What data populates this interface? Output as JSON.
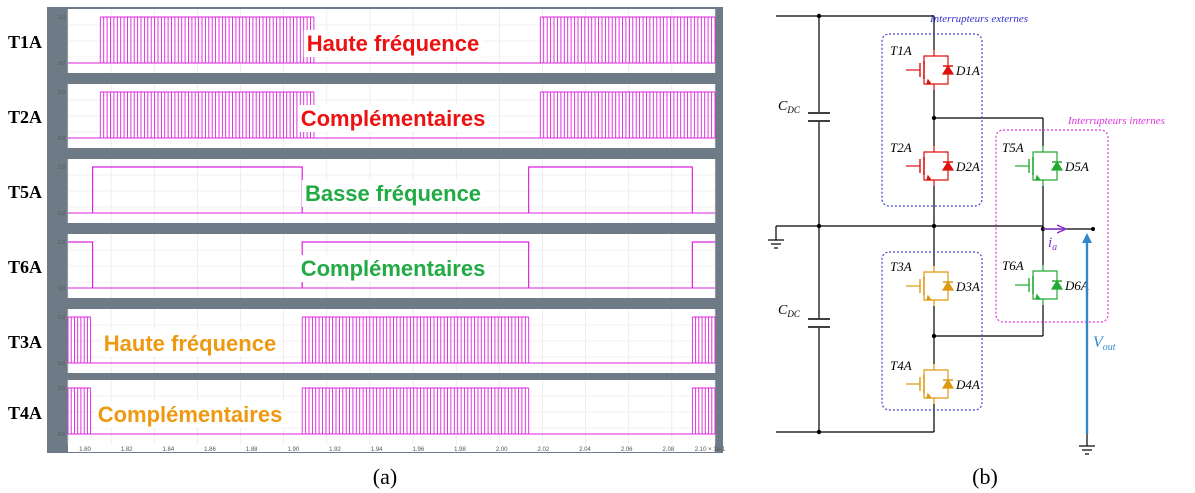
{
  "panel_a": {
    "caption": "(a)",
    "x_ticks": [
      "1.80",
      "1.82",
      "1.84",
      "1.86",
      "1.88",
      "1.90",
      "1.92",
      "1.94",
      "1.96",
      "1.98",
      "2.00",
      "2.02",
      "2.04",
      "2.06",
      "2.08",
      "2.10 × 1e-1"
    ],
    "y_labels": {
      "top": "1.0",
      "bottom": "0.0"
    },
    "trace_color": "#dd22dd",
    "rows": [
      {
        "label": "T1A",
        "annotation": "Haute fréquence",
        "annotation_color": "#ee1111",
        "pattern": "hf",
        "hf_intervals": [
          [
            0.05,
            0.38
          ],
          [
            0.73,
            1.0
          ]
        ],
        "low_intervals": []
      },
      {
        "label": "T2A",
        "annotation": "Complémentaires",
        "annotation_color": "#ee1111",
        "pattern": "hf",
        "hf_intervals": [
          [
            0.05,
            0.38
          ],
          [
            0.73,
            1.0
          ]
        ],
        "low_intervals": []
      },
      {
        "label": "T5A",
        "annotation": "Basse fréquence",
        "annotation_color": "#22aa44",
        "pattern": "lf",
        "hf_intervals": [],
        "low_intervals": [
          [
            0.0,
            0.038
          ],
          [
            0.362,
            0.712
          ],
          [
            0.965,
            1.0
          ]
        ]
      },
      {
        "label": "T6A",
        "annotation": "Complémentaires",
        "annotation_color": "#22aa44",
        "pattern": "lf",
        "hf_intervals": [],
        "low_intervals": [
          [
            0.038,
            0.362
          ],
          [
            0.712,
            0.965
          ]
        ]
      },
      {
        "label": "T3A",
        "annotation": "Haute fréquence",
        "annotation_color": "#ee9911",
        "pattern": "hf",
        "hf_intervals": [
          [
            0.0,
            0.035
          ],
          [
            0.362,
            0.712
          ],
          [
            0.965,
            1.0
          ]
        ],
        "low_intervals": []
      },
      {
        "label": "T4A",
        "annotation": "Complémentaires",
        "annotation_color": "#ee9911",
        "pattern": "hf",
        "hf_intervals": [
          [
            0.0,
            0.035
          ],
          [
            0.362,
            0.712
          ],
          [
            0.965,
            1.0
          ]
        ],
        "low_intervals": []
      }
    ]
  },
  "panel_b": {
    "caption": "(b)",
    "groups": {
      "external": "Interrupteurs externes",
      "internal": "Interrupteurs internes"
    },
    "capacitor": {
      "main": "C",
      "sub": "DC"
    },
    "current": {
      "main": "i",
      "sub": "a"
    },
    "voltage": {
      "main": "V",
      "sub": "out"
    },
    "switches": [
      {
        "name": "T1A",
        "diode": "D1A",
        "color": "#dd1111"
      },
      {
        "name": "T2A",
        "diode": "D2A",
        "color": "#dd1111"
      },
      {
        "name": "T3A",
        "diode": "D3A",
        "color": "#dd9911"
      },
      {
        "name": "T4A",
        "diode": "D4A",
        "color": "#dd9911"
      },
      {
        "name": "T5A",
        "diode": "D5A",
        "color": "#22aa33"
      },
      {
        "name": "T6A",
        "diode": "D6A",
        "color": "#22aa33"
      }
    ],
    "colors": {
      "external_box": "#4444cc",
      "internal_box": "#dd33dd",
      "current_arrow": "#8833cc",
      "voltage_arrow": "#3388cc",
      "wire": "#000000"
    }
  }
}
